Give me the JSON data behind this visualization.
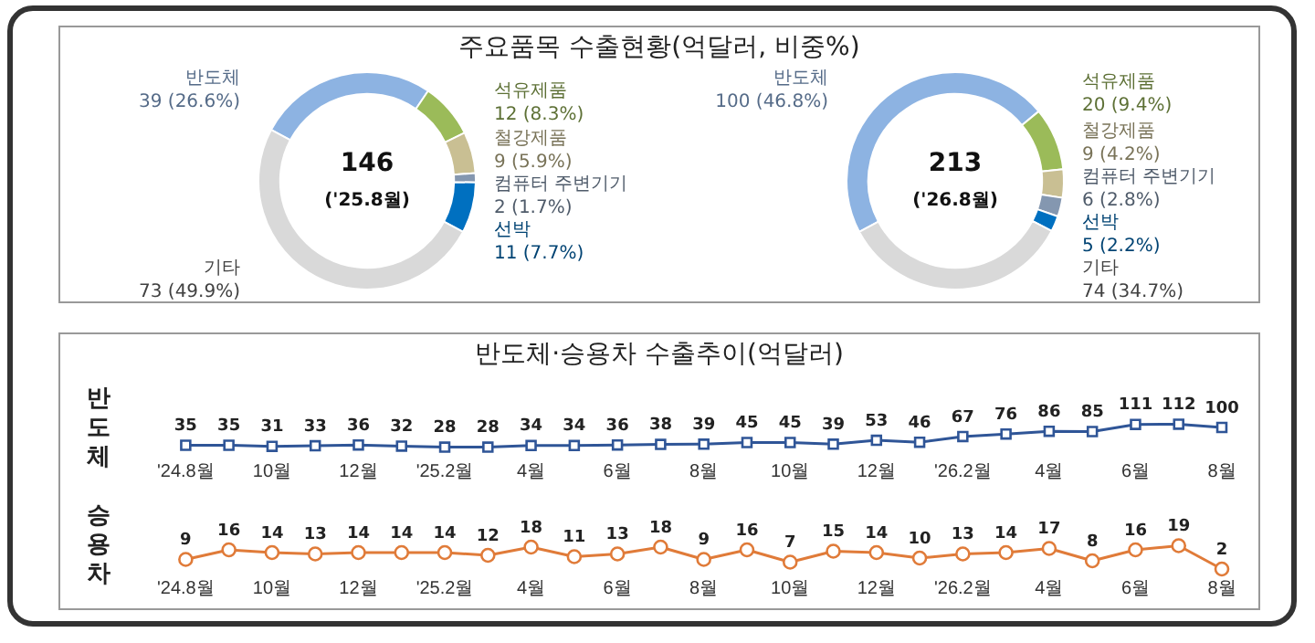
{
  "chart_data": [
    {
      "type": "donut",
      "title": "주요품목 수출현황(억달러, 비중%)",
      "categories": [
        "반도체",
        "석유제품",
        "철강제품",
        "컴퓨터 주변기기",
        "선박",
        "기타"
      ],
      "values": [
        39,
        12,
        9,
        2,
        11,
        73
      ],
      "value_labels": [
        "39 (26.6%)",
        "12 (8.3%)",
        "9 (5.9%)",
        "2 (1.7%)",
        "11 (7.7%)",
        "73 (49.9%)"
      ],
      "colors": [
        "#8db3e2",
        "#9bbb59",
        "#c9bf93",
        "#8497b0",
        "#0070c0",
        "#d9d9d9"
      ],
      "annotations": [
        "146",
        "('25.8월)"
      ]
    },
    {
      "type": "donut",
      "categories": [
        "반도체",
        "석유제품",
        "철강제품",
        "컴퓨터 주변기기",
        "선박",
        "기타"
      ],
      "values": [
        100,
        20,
        9,
        6,
        5,
        74
      ],
      "value_labels": [
        "100 (46.8%)",
        "20 (9.4%)",
        "9 (4.2%)",
        "6 (2.8%)",
        "5 (2.2%)",
        "74 (34.7%)"
      ],
      "colors": [
        "#8db3e2",
        "#9bbb59",
        "#c9bf93",
        "#8497b0",
        "#0070c0",
        "#d9d9d9"
      ],
      "annotations": [
        "213",
        "('26.8월)"
      ]
    },
    {
      "type": "line",
      "title": "반도체·승용차 수출추이(억달러)",
      "ylabel": "반도체",
      "categories": [
        "'24.8월",
        null,
        "10월",
        null,
        "12월",
        null,
        "'25.2월",
        null,
        "4월",
        null,
        "6월",
        null,
        "8월",
        null,
        "10월",
        null,
        "12월",
        null,
        "'26.2월",
        null,
        "4월",
        null,
        "6월",
        null,
        "8월"
      ],
      "series": [
        {
          "color": "#2f5597",
          "values": [
            35,
            35,
            31,
            33,
            36,
            32,
            28,
            28,
            34,
            34,
            36,
            38,
            39,
            45,
            45,
            39,
            53,
            46,
            67,
            76,
            86,
            85,
            111,
            112,
            100
          ]
        }
      ],
      "data_labels": true,
      "marker": "square"
    },
    {
      "type": "line",
      "ylabel": "승용차",
      "categories": [
        "'24.8월",
        null,
        "10월",
        null,
        "12월",
        null,
        "'25.2월",
        null,
        "4월",
        null,
        "6월",
        null,
        "8월",
        null,
        "10월",
        null,
        "12월",
        null,
        "'26.2월",
        null,
        "4월",
        null,
        "6월",
        null,
        "8월"
      ],
      "series": [
        {
          "color": "#e07b39",
          "values": [
            9,
            16,
            14,
            13,
            14,
            14,
            14,
            12,
            18,
            11,
            13,
            18,
            9,
            16,
            7,
            15,
            14,
            10,
            13,
            14,
            17,
            8,
            16,
            19,
            2
          ]
        }
      ],
      "data_labels": true,
      "marker": "circle"
    }
  ]
}
